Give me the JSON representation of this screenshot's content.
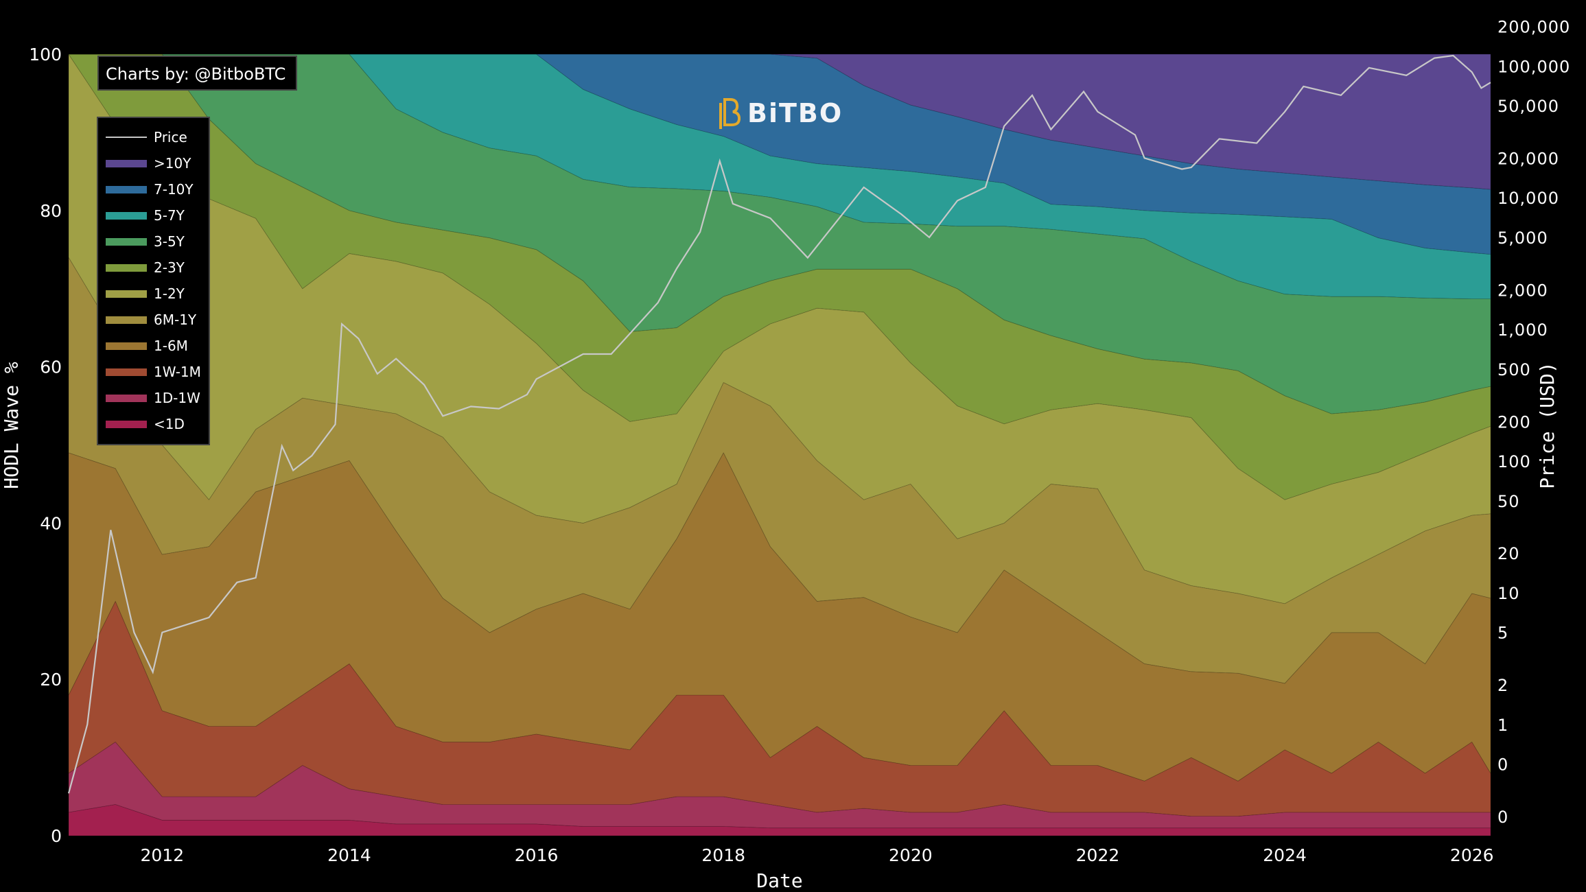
{
  "chart_data": {
    "type": "area",
    "stacked": true,
    "xlabel": "Date",
    "ylabel": "HODL Wave %",
    "y2label": "Price (USD)",
    "xlim": [
      2011.0,
      2026.2
    ],
    "ylim": [
      0,
      100
    ],
    "y2scale": "log",
    "y2lim": [
      0.143,
      123000
    ],
    "grid": false,
    "legend_position": "top-left",
    "credit": "Charts by: @BitboBTC",
    "logo_text": "BiTBO",
    "x_ticks": [
      {
        "value": 2012,
        "label": "2012"
      },
      {
        "value": 2014,
        "label": "2014"
      },
      {
        "value": 2016,
        "label": "2016"
      },
      {
        "value": 2018,
        "label": "2018"
      },
      {
        "value": 2020,
        "label": "2020"
      },
      {
        "value": 2022,
        "label": "2022"
      },
      {
        "value": 2024,
        "label": "2024"
      },
      {
        "value": 2026,
        "label": "2026"
      }
    ],
    "y_ticks": [
      {
        "value": 0,
        "label": "0"
      },
      {
        "value": 20,
        "label": "20"
      },
      {
        "value": 40,
        "label": "40"
      },
      {
        "value": 60,
        "label": "60"
      },
      {
        "value": 80,
        "label": "80"
      },
      {
        "value": 100,
        "label": "100"
      }
    ],
    "y2_ticks": [
      {
        "value": 200000,
        "label": "200,000"
      },
      {
        "value": 100000,
        "label": "100,000"
      },
      {
        "value": 50000,
        "label": "50,000"
      },
      {
        "value": 20000,
        "label": "20,000"
      },
      {
        "value": 10000,
        "label": "10,000"
      },
      {
        "value": 5000,
        "label": "5,000"
      },
      {
        "value": 2000,
        "label": "2,000"
      },
      {
        "value": 1000,
        "label": "1,000"
      },
      {
        "value": 500,
        "label": "500"
      },
      {
        "value": 200,
        "label": "200"
      },
      {
        "value": 100,
        "label": "100"
      },
      {
        "value": 50,
        "label": "50"
      },
      {
        "value": 20,
        "label": "20"
      },
      {
        "value": 10,
        "label": "10"
      },
      {
        "value": 5,
        "label": "5"
      },
      {
        "value": 2,
        "label": "2"
      },
      {
        "value": 1,
        "label": "1"
      },
      {
        "value": 0.5,
        "label": "0"
      },
      {
        "value": 0.2,
        "label": "0"
      }
    ],
    "x": [
      2011.0,
      2011.5,
      2012.0,
      2012.5,
      2013.0,
      2013.5,
      2014.0,
      2014.5,
      2015.0,
      2015.5,
      2016.0,
      2016.5,
      2017.0,
      2017.5,
      2018.0,
      2018.5,
      2019.0,
      2019.5,
      2020.0,
      2020.5,
      2021.0,
      2021.5,
      2022.0,
      2022.5,
      2023.0,
      2023.5,
      2024.0,
      2024.5,
      2025.0,
      2025.5,
      2026.0,
      2026.2
    ],
    "series": [
      {
        "name": "<1D",
        "color": "#a3204f",
        "values": [
          3,
          4,
          2,
          2,
          2,
          2,
          2,
          1.5,
          1.5,
          1.5,
          1.5,
          1.2,
          1.2,
          1.2,
          1.2,
          1,
          1,
          1,
          1,
          1,
          1,
          1,
          1,
          1,
          1,
          1,
          1,
          1,
          1,
          1,
          1,
          1
        ]
      },
      {
        "name": "1D-1W",
        "color": "#a1345a",
        "values": [
          5,
          8,
          3,
          3,
          3,
          7,
          4,
          3.5,
          2.5,
          2.5,
          2.5,
          2.8,
          2.8,
          3.8,
          3.8,
          3,
          2,
          2.5,
          2,
          2,
          3,
          2,
          2,
          2,
          1.5,
          1.5,
          2,
          2,
          2,
          2,
          2,
          2
        ]
      },
      {
        "name": "1W-1M",
        "color": "#a04b32",
        "values": [
          10,
          18,
          11,
          9,
          9,
          9,
          16,
          9,
          8,
          8,
          9,
          8,
          7,
          13,
          13,
          6,
          11,
          6.5,
          6,
          6,
          12,
          6,
          6,
          4,
          7.5,
          4.5,
          8,
          5,
          9,
          5,
          9,
          5
        ]
      },
      {
        "name": "1-6M",
        "color": "#9c7632",
        "values": [
          31,
          17,
          20,
          23,
          30,
          28,
          26,
          25,
          18.4,
          14,
          16,
          19,
          18,
          20,
          31,
          27,
          16,
          20.5,
          19,
          17,
          18,
          21,
          17,
          15,
          11,
          13.8,
          8.5,
          18,
          14,
          14,
          19,
          22.4
        ]
      },
      {
        "name": "6M-1Y",
        "color": "#a08d3e",
        "values": [
          25,
          17,
          14,
          6,
          8,
          10,
          7,
          15,
          20.6,
          18,
          12,
          9,
          13,
          7,
          9,
          18,
          18,
          12.5,
          17,
          12,
          6,
          15,
          18.4,
          12,
          11,
          10.2,
          10.2,
          7,
          10,
          17,
          10,
          10.8
        ]
      },
      {
        "name": "1-2Y",
        "color": "#a0a046",
        "values": [
          26,
          27,
          32,
          38.5,
          27,
          14,
          19.5,
          19.5,
          21,
          24,
          22,
          17,
          11,
          9,
          4,
          10.5,
          19.5,
          24,
          15.5,
          17,
          12.7,
          9.5,
          10.9,
          20.5,
          21.5,
          16,
          13.3,
          12,
          10.5,
          10,
          10.5,
          11.2
        ]
      },
      {
        "name": "2-3Y",
        "color": "#7f9b3c",
        "values": [
          0,
          9,
          18,
          10.2,
          7,
          13,
          5.5,
          5,
          5.5,
          8.5,
          12,
          14,
          11.5,
          11,
          7,
          5.5,
          5,
          5.5,
          12,
          15,
          13.3,
          9.5,
          7,
          6.5,
          7,
          12.5,
          13.3,
          9,
          8,
          6.5,
          5.5,
          5.1
        ]
      },
      {
        "name": "3-5Y",
        "color": "#4b9b5e",
        "values": [
          0,
          0,
          0,
          8.3,
          14,
          17,
          20,
          14.5,
          12.5,
          11.5,
          12,
          13,
          18.5,
          17.8,
          13.5,
          10.7,
          8,
          6,
          5.8,
          8,
          12,
          13.6,
          14.7,
          15.4,
          13,
          11.5,
          13,
          15,
          14.5,
          13.3,
          11.7,
          11.2
        ]
      },
      {
        "name": "5-7Y",
        "color": "#2b9d95",
        "values": [
          0,
          0,
          0,
          0,
          0,
          0,
          0,
          7,
          10,
          12,
          13,
          11.5,
          10,
          8.2,
          7,
          5.3,
          5.5,
          7,
          6.7,
          6.3,
          5.5,
          3.2,
          3.5,
          3.6,
          6.2,
          8.5,
          9.9,
          9.9,
          7.5,
          6.4,
          5.9,
          5.7
        ]
      },
      {
        "name": "7-10Y",
        "color": "#2e6b9b",
        "values": [
          0,
          0,
          0,
          0,
          0,
          0,
          0,
          0,
          0,
          0,
          0,
          4.5,
          7,
          9,
          10.5,
          13,
          13.5,
          10.5,
          8.5,
          7.7,
          6.9,
          8.2,
          7.5,
          7,
          6.3,
          5.8,
          5.6,
          5.4,
          7.3,
          8.1,
          8.3,
          8.3
        ]
      },
      {
        "name": ">10Y",
        "color": "#5b4790",
        "values": [
          0,
          0,
          0,
          0,
          0,
          0,
          0,
          0,
          0,
          0,
          0,
          0,
          0,
          0,
          0,
          0,
          0.5,
          4,
          6.5,
          8,
          9.6,
          11,
          12,
          13,
          14,
          14.7,
          15.2,
          15.7,
          16.2,
          16.7,
          17.1,
          17.3
        ]
      }
    ],
    "price": {
      "name": "Price",
      "color": "#c8c8c8",
      "x": [
        2011.0,
        2011.2,
        2011.45,
        2011.7,
        2011.9,
        2012.0,
        2012.5,
        2012.8,
        2013.0,
        2013.28,
        2013.4,
        2013.6,
        2013.85,
        2013.92,
        2014.1,
        2014.3,
        2014.5,
        2014.8,
        2015.0,
        2015.3,
        2015.6,
        2015.9,
        2016.0,
        2016.5,
        2016.8,
        2017.0,
        2017.3,
        2017.5,
        2017.75,
        2017.96,
        2018.1,
        2018.5,
        2018.9,
        2019.5,
        2019.9,
        2020.2,
        2020.5,
        2020.8,
        2021.0,
        2021.3,
        2021.5,
        2021.85,
        2022.0,
        2022.4,
        2022.5,
        2022.9,
        2023.0,
        2023.3,
        2023.7,
        2024.0,
        2024.2,
        2024.6,
        2024.9,
        2025.3,
        2025.6,
        2025.8,
        2026.0,
        2026.1,
        2026.2
      ],
      "values": [
        0.3,
        1,
        30,
        5,
        2.5,
        5,
        6.5,
        12,
        13,
        130,
        85,
        110,
        190,
        1100,
        850,
        460,
        600,
        380,
        220,
        260,
        250,
        320,
        420,
        650,
        650,
        930,
        1600,
        2900,
        5500,
        19000,
        9000,
        7000,
        3500,
        12000,
        7500,
        5000,
        9500,
        12000,
        35000,
        60000,
        33000,
        64000,
        45000,
        30000,
        20000,
        16500,
        17000,
        28000,
        26000,
        45000,
        70000,
        60000,
        97000,
        85000,
        115000,
        120000,
        90000,
        68000,
        75000
      ]
    }
  }
}
